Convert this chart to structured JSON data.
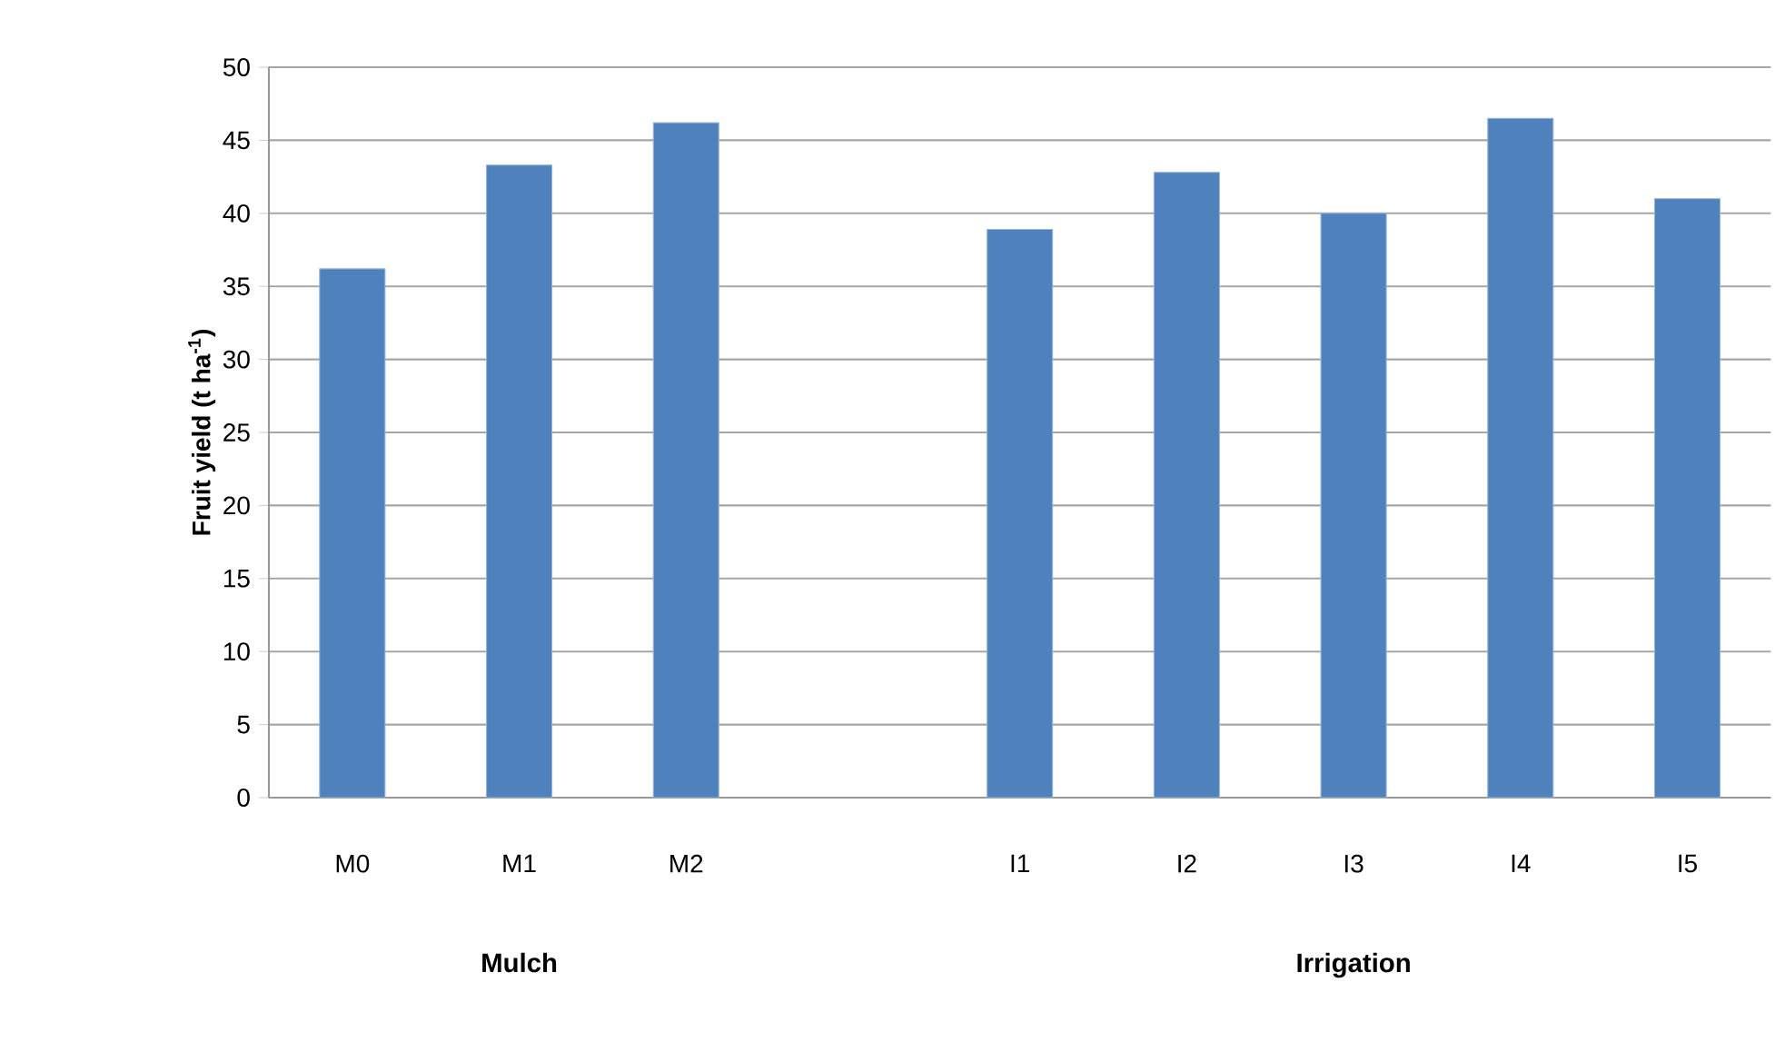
{
  "chart_data": {
    "type": "bar",
    "categories": [
      "M0",
      "M1",
      "M2",
      null,
      "I1",
      "I2",
      "I3",
      "I4",
      "I5"
    ],
    "values": [
      36.2,
      43.3,
      46.2,
      null,
      38.9,
      42.8,
      40.0,
      46.5,
      41.0
    ],
    "color": "#4f81bd",
    "ylabel": "Fruit yield (t ha$^{-1}$)",
    "ylim": [
      0,
      50
    ],
    "yticks": [
      0,
      5,
      10,
      15,
      20,
      25,
      30,
      35,
      40,
      45,
      50
    ],
    "grid": "y",
    "annotations": [
      "Mulch",
      "Irrigation"
    ]
  }
}
